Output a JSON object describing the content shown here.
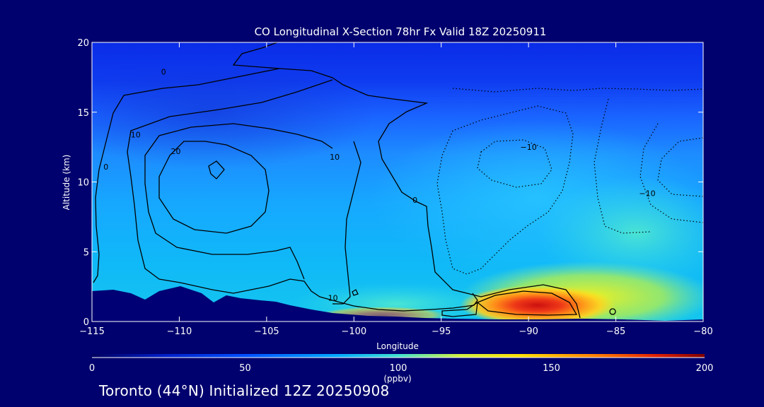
{
  "chart_data": {
    "type": "heatmap",
    "title": "CO Longitudinal X-Section 78hr  Fx Valid 18Z 20250911",
    "xlabel": "Longitude",
    "ylabel": "Altitude (km)",
    "xlim": [
      -115,
      -80
    ],
    "ylim": [
      0,
      20
    ],
    "x_ticks": [
      {
        "value": -115,
        "label": "−115"
      },
      {
        "value": -110,
        "label": "−110"
      },
      {
        "value": -105,
        "label": "−105"
      },
      {
        "value": -100,
        "label": "−100"
      },
      {
        "value": -95,
        "label": "−95"
      },
      {
        "value": -90,
        "label": "−90"
      },
      {
        "value": -85,
        "label": "−85"
      },
      {
        "value": -80,
        "label": "−80"
      }
    ],
    "y_ticks": [
      {
        "value": 0,
        "label": "0"
      },
      {
        "value": 5,
        "label": "5"
      },
      {
        "value": 10,
        "label": "10"
      },
      {
        "value": 15,
        "label": "15"
      },
      {
        "value": 20,
        "label": "20"
      }
    ],
    "colorbar": {
      "range": [
        0,
        200
      ],
      "unit": "(ppbv)",
      "ticks": [
        {
          "value": 0,
          "label": "0"
        },
        {
          "value": 50,
          "label": "50"
        },
        {
          "value": 100,
          "label": "100"
        },
        {
          "value": 150,
          "label": "150"
        },
        {
          "value": 200,
          "label": "200"
        }
      ]
    },
    "contour_labels": [
      {
        "text": "0",
        "lon": -110.9,
        "alt": 17.9
      },
      {
        "text": "10",
        "lon": -112.5,
        "alt": 13.4
      },
      {
        "text": "0",
        "lon": -114.2,
        "alt": 11.1
      },
      {
        "text": "20",
        "lon": -110.2,
        "alt": 12.2
      },
      {
        "text": "10",
        "lon": -101.1,
        "alt": 11.8
      },
      {
        "text": "0",
        "lon": -96.5,
        "alt": 8.7
      },
      {
        "text": "10",
        "lon": -101.2,
        "alt": 1.7
      },
      {
        "text": "−10",
        "lon": -90.0,
        "alt": 12.5
      },
      {
        "text": "−10",
        "lon": -83.2,
        "alt": 9.2
      }
    ]
  },
  "footer": {
    "text": "Toronto (44°N) Initialized 12Z 20250908"
  },
  "colors": {
    "background": "#00006e",
    "terrain": "#000074",
    "contour": "#000000",
    "text": "#ffffff"
  }
}
